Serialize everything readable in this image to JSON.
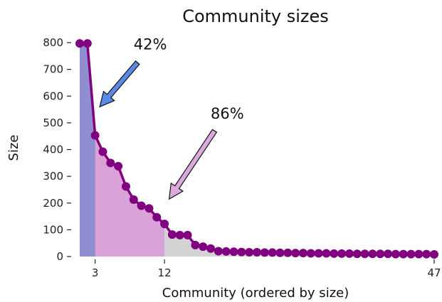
{
  "chart_data": {
    "type": "line",
    "title": "Community sizes",
    "xlabel": "Community (ordered by size)",
    "ylabel": "Size",
    "ylim": [
      0,
      800
    ],
    "xlim": [
      1,
      47
    ],
    "yticks": [
      0,
      100,
      200,
      300,
      400,
      500,
      600,
      700,
      800
    ],
    "xticks": [
      3,
      12,
      47
    ],
    "grid": false,
    "line_color": "#800080",
    "series": [
      {
        "x": [
          1,
          2,
          3,
          4,
          5,
          6,
          7,
          8,
          9,
          10,
          11,
          12,
          13,
          14,
          15,
          16,
          17,
          18,
          19,
          20,
          21,
          22,
          23,
          24,
          25,
          26,
          27,
          28,
          29,
          30,
          31,
          32,
          33,
          34,
          35,
          36,
          37,
          38,
          39,
          40,
          41,
          42,
          43,
          44,
          45,
          46,
          47
        ],
        "values": [
          797,
          797,
          453,
          392,
          350,
          338,
          262,
          213,
          190,
          180,
          147,
          122,
          82,
          80,
          80,
          43,
          37,
          30,
          20,
          19,
          18,
          17,
          16,
          16,
          15,
          15,
          14,
          14,
          13,
          13,
          12,
          12,
          12,
          11,
          11,
          11,
          10,
          10,
          10,
          10,
          10,
          9,
          9,
          9,
          9,
          9,
          8
        ]
      }
    ],
    "shaded_regions": [
      {
        "from": 1,
        "to": 3,
        "color": "#8e8ed0"
      },
      {
        "from": 3,
        "to": 12,
        "color": "#d9a2d9"
      },
      {
        "from": 12,
        "to": 47,
        "color": "#d3d3d3"
      }
    ],
    "annotations": [
      {
        "text": "42%",
        "arrow_color": "#5b8ae6",
        "tip": [
          3.6,
          560
        ],
        "tail": [
          8.5,
          725
        ],
        "text_pos": [
          8.0,
          775
        ]
      },
      {
        "text": "86%",
        "arrow_color": "#dba9dc",
        "tip": [
          12.6,
          215
        ],
        "tail": [
          18.5,
          470
        ],
        "text_pos": [
          18.0,
          515
        ]
      }
    ]
  }
}
